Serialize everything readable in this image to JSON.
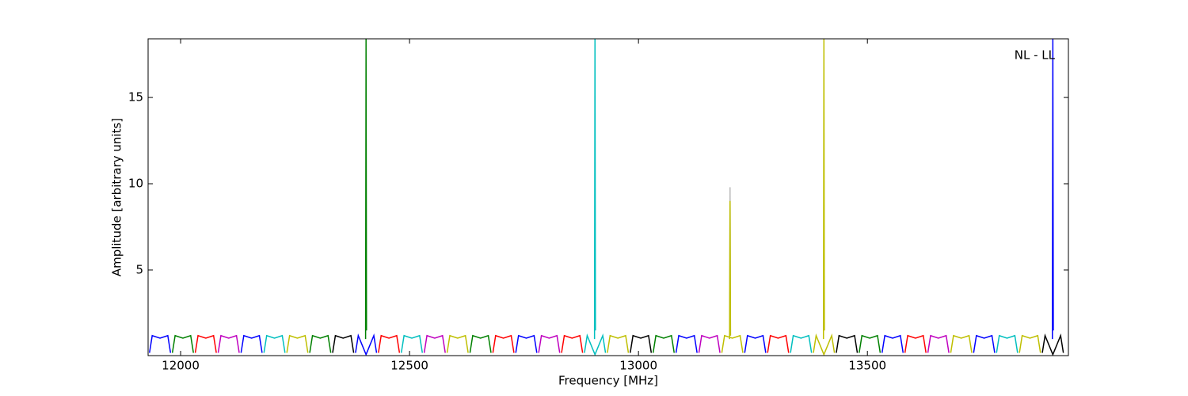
{
  "chart_data": {
    "type": "line",
    "xlabel": "Frequency [MHz]",
    "ylabel": "Amplitude [arbitrary units]",
    "annotation": "NL - LL",
    "xlim": [
      11929,
      13939
    ],
    "ylim": [
      0.04,
      18.4
    ],
    "xticks": [
      12000,
      12500,
      13000,
      13500
    ],
    "yticks": [
      5,
      10,
      15
    ],
    "series": [
      {
        "color": "#0000ff",
        "x": [
          11932,
          11938,
          11955,
          11972,
          11978
        ],
        "values": [
          0.2,
          1.2,
          1.05,
          1.2,
          0.2
        ]
      },
      {
        "color": "#008000",
        "x": [
          11982,
          11988,
          12005,
          12022,
          12028
        ],
        "values": [
          0.2,
          1.2,
          1.05,
          1.2,
          0.2
        ]
      },
      {
        "color": "#ff0000",
        "x": [
          12032,
          12038,
          12055,
          12072,
          12078
        ],
        "values": [
          0.2,
          1.2,
          1.05,
          1.2,
          0.2
        ]
      },
      {
        "color": "#bf00bf",
        "x": [
          12082,
          12088,
          12105,
          12122,
          12128
        ],
        "values": [
          0.2,
          1.2,
          1.05,
          1.2,
          0.2
        ]
      },
      {
        "color": "#0000ff",
        "x": [
          12132,
          12138,
          12155,
          12172,
          12178
        ],
        "values": [
          0.2,
          1.2,
          1.05,
          1.2,
          0.2
        ]
      },
      {
        "color": "#00bfbf",
        "x": [
          12182,
          12188,
          12205,
          12222,
          12228
        ],
        "values": [
          0.2,
          1.2,
          1.05,
          1.2,
          0.2
        ]
      },
      {
        "color": "#bfbf00",
        "x": [
          12232,
          12238,
          12255,
          12272,
          12278
        ],
        "values": [
          0.2,
          1.2,
          1.05,
          1.2,
          0.2
        ]
      },
      {
        "color": "#008000",
        "x": [
          12282,
          12288,
          12305,
          12322,
          12328
        ],
        "values": [
          0.2,
          1.2,
          1.05,
          1.2,
          0.2
        ]
      },
      {
        "color": "#000000",
        "x": [
          12332,
          12338,
          12355,
          12372,
          12378
        ],
        "values": [
          0.2,
          1.2,
          1.05,
          1.2,
          0.2
        ]
      },
      {
        "color": "#0000ff",
        "x": [
          12382,
          12388,
          12405,
          12422,
          12428
        ],
        "values": [
          0.2,
          1.2,
          0.1,
          1.2,
          0.2
        ]
      },
      {
        "color": "#ff0000",
        "x": [
          12432,
          12438,
          12455,
          12472,
          12478
        ],
        "values": [
          0.2,
          1.2,
          1.05,
          1.2,
          0.2
        ]
      },
      {
        "color": "#00bfbf",
        "x": [
          12482,
          12488,
          12505,
          12522,
          12528
        ],
        "values": [
          0.2,
          1.2,
          1.05,
          1.2,
          0.2
        ]
      },
      {
        "color": "#bf00bf",
        "x": [
          12532,
          12538,
          12555,
          12572,
          12578
        ],
        "values": [
          0.2,
          1.2,
          1.05,
          1.2,
          0.2
        ]
      },
      {
        "color": "#bfbf00",
        "x": [
          12582,
          12588,
          12605,
          12622,
          12628
        ],
        "values": [
          0.2,
          1.2,
          1.05,
          1.2,
          0.2
        ]
      },
      {
        "color": "#008000",
        "x": [
          12632,
          12638,
          12655,
          12672,
          12678
        ],
        "values": [
          0.2,
          1.2,
          1.05,
          1.2,
          0.2
        ]
      },
      {
        "color": "#ff0000",
        "x": [
          12682,
          12688,
          12705,
          12722,
          12728
        ],
        "values": [
          0.2,
          1.2,
          1.05,
          1.2,
          0.2
        ]
      },
      {
        "color": "#0000ff",
        "x": [
          12732,
          12738,
          12755,
          12772,
          12778
        ],
        "values": [
          0.2,
          1.2,
          1.05,
          1.2,
          0.2
        ]
      },
      {
        "color": "#bf00bf",
        "x": [
          12782,
          12788,
          12805,
          12822,
          12828
        ],
        "values": [
          0.2,
          1.2,
          1.05,
          1.2,
          0.2
        ]
      },
      {
        "color": "#ff0000",
        "x": [
          12832,
          12838,
          12855,
          12872,
          12878
        ],
        "values": [
          0.2,
          1.2,
          1.05,
          1.2,
          0.2
        ]
      },
      {
        "color": "#00bfbf",
        "x": [
          12882,
          12888,
          12905,
          12922,
          12928
        ],
        "values": [
          0.2,
          1.2,
          0.1,
          1.2,
          0.2
        ]
      },
      {
        "color": "#bfbf00",
        "x": [
          12932,
          12938,
          12955,
          12972,
          12978
        ],
        "values": [
          0.2,
          1.2,
          1.05,
          1.2,
          0.2
        ]
      },
      {
        "color": "#000000",
        "x": [
          12982,
          12988,
          13005,
          13022,
          13028
        ],
        "values": [
          0.2,
          1.2,
          1.05,
          1.2,
          0.2
        ]
      },
      {
        "color": "#008000",
        "x": [
          13032,
          13038,
          13055,
          13072,
          13078
        ],
        "values": [
          0.2,
          1.2,
          1.05,
          1.2,
          0.2
        ]
      },
      {
        "color": "#0000ff",
        "x": [
          13082,
          13088,
          13105,
          13122,
          13128
        ],
        "values": [
          0.2,
          1.2,
          1.05,
          1.2,
          0.2
        ]
      },
      {
        "color": "#bf00bf",
        "x": [
          13132,
          13138,
          13155,
          13172,
          13178
        ],
        "values": [
          0.2,
          1.2,
          1.05,
          1.2,
          0.2
        ]
      },
      {
        "color": "#bfbf00",
        "x": [
          13182,
          13188,
          13205,
          13222,
          13228
        ],
        "values": [
          0.2,
          1.2,
          1.05,
          1.2,
          0.2
        ]
      },
      {
        "color": "#0000ff",
        "x": [
          13232,
          13238,
          13255,
          13272,
          13278
        ],
        "values": [
          0.2,
          1.2,
          1.05,
          1.2,
          0.2
        ]
      },
      {
        "color": "#ff0000",
        "x": [
          13282,
          13288,
          13305,
          13322,
          13328
        ],
        "values": [
          0.2,
          1.2,
          1.05,
          1.2,
          0.2
        ]
      },
      {
        "color": "#00bfbf",
        "x": [
          13332,
          13338,
          13355,
          13372,
          13378
        ],
        "values": [
          0.2,
          1.2,
          1.05,
          1.2,
          0.2
        ]
      },
      {
        "color": "#bfbf00",
        "x": [
          13382,
          13388,
          13405,
          13422,
          13428
        ],
        "values": [
          0.2,
          1.2,
          0.1,
          1.2,
          0.2
        ]
      },
      {
        "color": "#000000",
        "x": [
          13432,
          13438,
          13455,
          13472,
          13478
        ],
        "values": [
          0.2,
          1.2,
          1.05,
          1.2,
          0.2
        ]
      },
      {
        "color": "#008000",
        "x": [
          13482,
          13488,
          13505,
          13522,
          13528
        ],
        "values": [
          0.2,
          1.2,
          1.05,
          1.2,
          0.2
        ]
      },
      {
        "color": "#0000ff",
        "x": [
          13532,
          13538,
          13555,
          13572,
          13578
        ],
        "values": [
          0.2,
          1.2,
          1.05,
          1.2,
          0.2
        ]
      },
      {
        "color": "#ff0000",
        "x": [
          13582,
          13588,
          13605,
          13622,
          13628
        ],
        "values": [
          0.2,
          1.2,
          1.05,
          1.2,
          0.2
        ]
      },
      {
        "color": "#bf00bf",
        "x": [
          13632,
          13638,
          13655,
          13672,
          13678
        ],
        "values": [
          0.2,
          1.2,
          1.05,
          1.2,
          0.2
        ]
      },
      {
        "color": "#bfbf00",
        "x": [
          13682,
          13688,
          13705,
          13722,
          13728
        ],
        "values": [
          0.2,
          1.2,
          1.05,
          1.2,
          0.2
        ]
      },
      {
        "color": "#0000ff",
        "x": [
          13732,
          13738,
          13755,
          13772,
          13778
        ],
        "values": [
          0.2,
          1.2,
          1.05,
          1.2,
          0.2
        ]
      },
      {
        "color": "#00bfbf",
        "x": [
          13782,
          13788,
          13805,
          13822,
          13828
        ],
        "values": [
          0.2,
          1.2,
          1.05,
          1.2,
          0.2
        ]
      },
      {
        "color": "#bfbf00",
        "x": [
          13832,
          13838,
          13855,
          13872,
          13878
        ],
        "values": [
          0.2,
          1.2,
          1.05,
          1.2,
          0.2
        ]
      },
      {
        "color": "#000000",
        "x": [
          13882,
          13888,
          13905,
          13922,
          13928
        ],
        "values": [
          0.2,
          1.2,
          0.1,
          1.2,
          0.2
        ]
      },
      {
        "color": "#008000",
        "x": [
          12404,
          12405,
          12406
        ],
        "values": [
          1.0,
          18.4,
          1.5
        ]
      },
      {
        "color": "#00bfbf",
        "x": [
          12904,
          12905,
          12906
        ],
        "values": [
          1.0,
          18.4,
          1.5
        ]
      },
      {
        "color": "#bbbbbb",
        "x": [
          13199,
          13200,
          13201
        ],
        "values": [
          1.0,
          9.8,
          1.2
        ]
      },
      {
        "color": "#bfbf00",
        "x": [
          13199,
          13200,
          13201
        ],
        "values": [
          1.0,
          9.0,
          1.2
        ]
      },
      {
        "color": "#bfbf00",
        "x": [
          13404,
          13405,
          13406
        ],
        "values": [
          1.0,
          18.4,
          1.5
        ]
      },
      {
        "color": "#0000ff",
        "x": [
          13904,
          13905,
          13906
        ],
        "values": [
          1.0,
          18.4,
          1.5
        ]
      }
    ]
  }
}
